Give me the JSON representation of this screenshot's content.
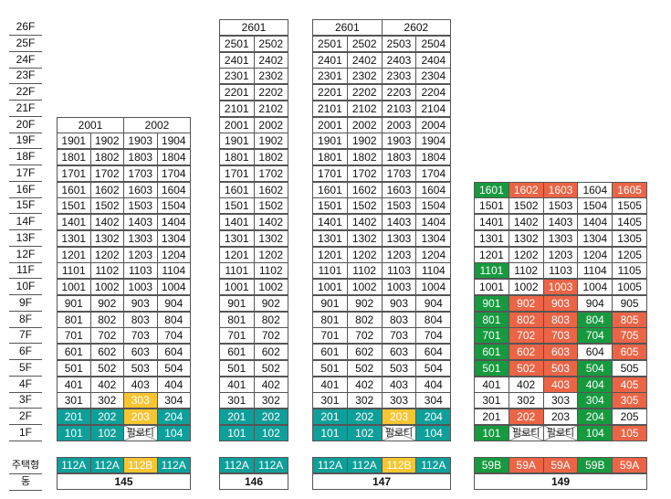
{
  "floors": [
    "26F",
    "25F",
    "24F",
    "23F",
    "22F",
    "21F",
    "20F",
    "19F",
    "18F",
    "17F",
    "16F",
    "15F",
    "14F",
    "13F",
    "12F",
    "11F",
    "10F",
    "9F",
    "8F",
    "7F",
    "6F",
    "5F",
    "4F",
    "3F",
    "2F",
    "1F"
  ],
  "row_labels": {
    "type": "주택형",
    "building": "동"
  },
  "buildings": [
    {
      "name": "145",
      "headers": [
        {
          "text": "2001",
          "span": 2
        },
        {
          "text": "2002",
          "span": 2
        }
      ],
      "top_floor": 19,
      "units_per_floor": 4,
      "special": {
        "303": "yellow",
        "201": "teal",
        "202": "teal",
        "203": "yellow",
        "204": "teal",
        "101": "teal",
        "102": "teal",
        "103": "piloti",
        "104": "teal"
      },
      "types": [
        {
          "text": "112A",
          "color": "teal"
        },
        {
          "text": "112A",
          "color": "teal"
        },
        {
          "text": "112B",
          "color": "yellow"
        },
        {
          "text": "112A",
          "color": "teal"
        }
      ]
    },
    {
      "name": "146",
      "headers": [
        {
          "text": "2601",
          "span": 2
        }
      ],
      "top_floor": 25,
      "units_per_floor": 2,
      "special": {
        "201": "teal",
        "202": "teal",
        "101": "teal",
        "102": "teal"
      },
      "types": [
        {
          "text": "112A",
          "color": "teal"
        },
        {
          "text": "112A",
          "color": "teal"
        }
      ]
    },
    {
      "name": "147",
      "headers": [
        {
          "text": "2601",
          "span": 2
        },
        {
          "text": "2602",
          "span": 2
        }
      ],
      "top_floor": 25,
      "units_per_floor": 4,
      "special": {
        "201": "teal",
        "202": "teal",
        "203": "yellow",
        "204": "teal",
        "101": "teal",
        "102": "teal",
        "103": "piloti",
        "104": "teal"
      },
      "types": [
        {
          "text": "112A",
          "color": "teal"
        },
        {
          "text": "112A",
          "color": "teal"
        },
        {
          "text": "112B",
          "color": "yellow"
        },
        {
          "text": "112A",
          "color": "teal"
        }
      ]
    },
    {
      "name": "149",
      "headers": [],
      "top_floor": 16,
      "units_per_floor": 5,
      "special": {
        "1601": "green",
        "1602": "red",
        "1603": "red",
        "1605": "red",
        "1101": "green",
        "1003": "red",
        "901": "green",
        "902": "red",
        "903": "red",
        "801": "green",
        "802": "red",
        "803": "red",
        "804": "green",
        "805": "red",
        "701": "green",
        "702": "red",
        "703": "red",
        "704": "green",
        "705": "red",
        "601": "green",
        "602": "red",
        "603": "red",
        "605": "red",
        "501": "green",
        "502": "red",
        "503": "red",
        "504": "green",
        "403": "red",
        "404": "green",
        "405": "red",
        "304": "green",
        "305": "red",
        "202": "red",
        "204": "green",
        "101": "green",
        "102": "piloti",
        "103": "piloti",
        "104": "green",
        "105": "red"
      },
      "types": [
        {
          "text": "59B",
          "color": "green"
        },
        {
          "text": "59A",
          "color": "red"
        },
        {
          "text": "59A",
          "color": "red"
        },
        {
          "text": "59B",
          "color": "green"
        },
        {
          "text": "59A",
          "color": "red"
        }
      ]
    }
  ],
  "piloti_label": "필로티",
  "colors": {
    "teal": "#0f9f9a",
    "yellow": "#f7c531",
    "green": "#179a3f",
    "red": "#ec6446"
  }
}
